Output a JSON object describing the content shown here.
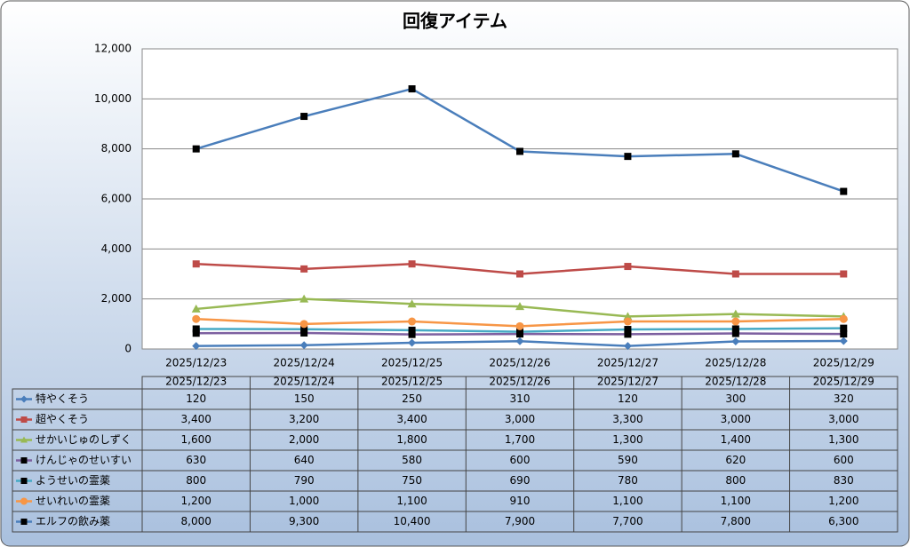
{
  "chart_data": {
    "type": "line",
    "title": "回復アイテム",
    "categories": [
      "2025/12/23",
      "2025/12/24",
      "2025/12/25",
      "2025/12/26",
      "2025/12/27",
      "2025/12/28",
      "2025/12/29"
    ],
    "ylim": [
      0,
      12000
    ],
    "yticks": [
      0,
      {
        "value": 2000,
        "label": "2,000"
      },
      {
        "value": 4000,
        "label": "4,000"
      },
      {
        "value": 6000,
        "label": "6,000"
      },
      {
        "value": 8000,
        "label": "8,000"
      },
      {
        "value": 10000,
        "label": "10,000"
      },
      {
        "value": 12000,
        "label": "12,000"
      }
    ],
    "grid": true,
    "series": [
      {
        "name": "特やくそう",
        "color": "#4a7ebb",
        "marker": "diamond",
        "marker_color": "#4a7ebb",
        "values": [
          120,
          150,
          250,
          310,
          120,
          300,
          320
        ],
        "value_labels": [
          "120",
          "150",
          "250",
          "310",
          "120",
          "300",
          "320"
        ]
      },
      {
        "name": "超やくそう",
        "color": "#be4b48",
        "marker": "square",
        "marker_color": "#be4b48",
        "values": [
          3400,
          3200,
          3400,
          3000,
          3300,
          3000,
          3000
        ],
        "value_labels": [
          "3,400",
          "3,200",
          "3,400",
          "3,000",
          "3,300",
          "3,000",
          "3,000"
        ]
      },
      {
        "name": "せかいじゅのしずく",
        "color": "#98b954",
        "marker": "triangle",
        "marker_color": "#98b954",
        "values": [
          1600,
          2000,
          1800,
          1700,
          1300,
          1400,
          1300
        ],
        "value_labels": [
          "1,600",
          "2,000",
          "1,800",
          "1,700",
          "1,300",
          "1,400",
          "1,300"
        ]
      },
      {
        "name": "けんじゃのせいすい",
        "color": "#7d60a0",
        "marker": "square",
        "marker_color": "#000000",
        "values": [
          630,
          640,
          580,
          600,
          590,
          620,
          600
        ],
        "value_labels": [
          "630",
          "640",
          "580",
          "600",
          "590",
          "620",
          "600"
        ]
      },
      {
        "name": "ようせいの霊薬",
        "color": "#46aac5",
        "marker": "square",
        "marker_color": "#000000",
        "values": [
          800,
          790,
          750,
          690,
          780,
          800,
          830
        ],
        "value_labels": [
          "800",
          "790",
          "750",
          "690",
          "780",
          "800",
          "830"
        ]
      },
      {
        "name": "せいれいの霊薬",
        "color": "#f79646",
        "marker": "circle",
        "marker_color": "#f79646",
        "values": [
          1200,
          1000,
          1100,
          910,
          1100,
          1100,
          1200
        ],
        "value_labels": [
          "1,200",
          "1,000",
          "1,100",
          "910",
          "1,100",
          "1,100",
          "1,200"
        ]
      },
      {
        "name": "エルフの飲み薬",
        "color": "#4a7ebb",
        "marker": "square",
        "marker_color": "#000000",
        "values": [
          8000,
          9300,
          10400,
          7900,
          7700,
          7800,
          6300
        ],
        "value_labels": [
          "8,000",
          "9,300",
          "10,400",
          "7,900",
          "7,700",
          "7,800",
          "6,300"
        ]
      }
    ]
  }
}
